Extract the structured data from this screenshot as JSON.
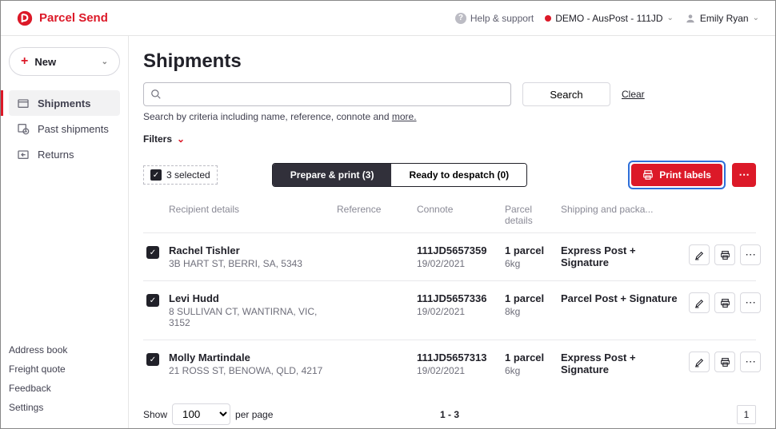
{
  "brand": {
    "name": "Parcel Send"
  },
  "topbar": {
    "help_label": "Help & support",
    "account_label": "DEMO - AusPost - 111JD",
    "user_name": "Emily Ryan"
  },
  "sidebar": {
    "new_label": "New",
    "nav": [
      {
        "label": "Shipments",
        "active": true
      },
      {
        "label": "Past shipments",
        "active": false
      },
      {
        "label": "Returns",
        "active": false
      }
    ],
    "bottom_links": [
      "Address book",
      "Freight quote",
      "Feedback",
      "Settings"
    ]
  },
  "page": {
    "title": "Shipments",
    "search_placeholder": "",
    "search_button": "Search",
    "clear_label": "Clear",
    "search_help_prefix": "Search by criteria including name, reference, connote and ",
    "search_help_more": "more.",
    "filters_label": "Filters",
    "selected_text": "3 selected",
    "tab_prepare": "Prepare & print (3)",
    "tab_ready": "Ready to despatch (0)",
    "print_labels": "Print labels"
  },
  "columns": {
    "recipient": "Recipient details",
    "reference": "Reference",
    "connote": "Connote",
    "parcel": "Parcel details",
    "shipping": "Shipping and packa..."
  },
  "rows": [
    {
      "name": "Rachel Tishler",
      "address": "3B HART ST, BERRI, SA, 5343",
      "connote": "111JD5657359",
      "date": "19/02/2021",
      "parcels": "1 parcel",
      "weight": "6kg",
      "service": "Express Post + Signature"
    },
    {
      "name": "Levi Hudd",
      "address": "8 SULLIVAN CT, WANTIRNA, VIC, 3152",
      "connote": "111JD5657336",
      "date": "19/02/2021",
      "parcels": "1 parcel",
      "weight": "8kg",
      "service": "Parcel Post + Signature"
    },
    {
      "name": "Molly Martindale",
      "address": "21 ROSS ST, BENOWA, QLD, 4217",
      "connote": "111JD5657313",
      "date": "19/02/2021",
      "parcels": "1 parcel",
      "weight": "6kg",
      "service": "Express Post + Signature"
    }
  ],
  "pager": {
    "show_label": "Show",
    "per_page_label": "per page",
    "page_size": "100",
    "range": "1 - 3",
    "current_page": "1"
  },
  "colors": {
    "accent": "#dc1928",
    "dark": "#31303a",
    "focus": "#2e6fd9"
  }
}
